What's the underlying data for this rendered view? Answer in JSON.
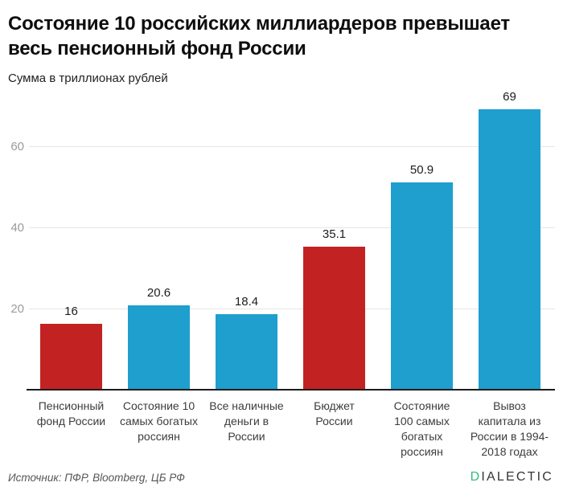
{
  "header": {
    "title_line1": "Состояние 10 российских миллиардеров превышает",
    "title_line2": "весь пенсионный фонд России",
    "subtitle": "Сумма в триллионах рублей"
  },
  "chart_data": {
    "type": "bar",
    "title": "Состояние 10 российских миллиардеров превышает весь пенсионный фонд России",
    "subtitle": "Сумма в триллионах рублей",
    "categories": [
      "Пенсионный фонд России",
      "Состояние 10 самых богатых россиян",
      "Все наличные деньги в России",
      "Бюджет России",
      "Состояние 100 самых богатых россиян",
      "Вывоз капитала из России в 1994-2018 годах"
    ],
    "category_lines": [
      [
        "Пенсионный",
        "фонд России"
      ],
      [
        "Состояние 10",
        "самых богатых",
        "россиян"
      ],
      [
        "Все наличные",
        "деньги в",
        "России"
      ],
      [
        "Бюджет",
        "России"
      ],
      [
        "Состояние",
        "100 самых",
        "богатых",
        "россиян"
      ],
      [
        "Вывоз",
        "капитала из",
        "России в 1994-",
        "2018 годах"
      ]
    ],
    "values": [
      16,
      20.6,
      18.4,
      35.1,
      50.9,
      69
    ],
    "value_labels": [
      "16",
      "20.6",
      "18.4",
      "35.1",
      "50.9",
      "69"
    ],
    "bar_colors": [
      "#c32222",
      "#1e9fce",
      "#1e9fce",
      "#c32222",
      "#1e9fce",
      "#1e9fce"
    ],
    "highlight_color": "#c32222",
    "default_color": "#1e9fce",
    "yticks": [
      20,
      40,
      60
    ],
    "ylim": [
      0,
      74.5
    ],
    "grid": true,
    "legend": "none"
  },
  "footer": {
    "source": "Источник: ПФР, Bloomberg, ЦБ РФ",
    "logo_first_letter": "D",
    "logo_rest": "IALECTIC",
    "logo_accent_color": "#2ebd7c"
  }
}
